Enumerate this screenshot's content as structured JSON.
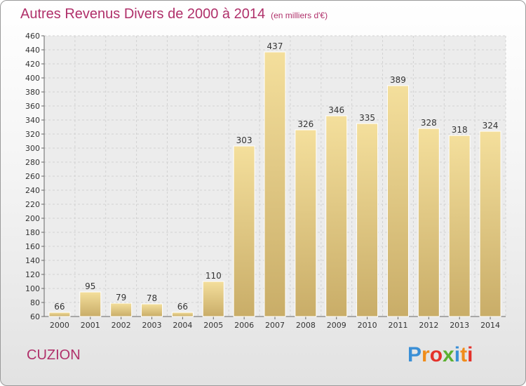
{
  "chart_data": {
    "type": "bar",
    "title": "Autres Revenus Divers de 2000 à 2014",
    "subtitle": "(en milliers d'€)",
    "categories": [
      "2000",
      "2001",
      "2002",
      "2003",
      "2004",
      "2005",
      "2006",
      "2007",
      "2008",
      "2009",
      "2010",
      "2011",
      "2012",
      "2013",
      "2014"
    ],
    "values": [
      66,
      95,
      79,
      78,
      66,
      110,
      303,
      437,
      326,
      346,
      335,
      389,
      328,
      318,
      324
    ],
    "ylim": [
      60,
      460
    ],
    "yticks": [
      60,
      80,
      100,
      120,
      140,
      160,
      180,
      200,
      220,
      240,
      260,
      280,
      300,
      320,
      340,
      360,
      380,
      400,
      420,
      440,
      460
    ],
    "grid": true,
    "bar_color": "#e6cd86"
  },
  "place_name": "CUZION",
  "logo": {
    "letters": [
      "P",
      "r",
      "o",
      "x",
      "i",
      "t",
      "i"
    ],
    "colors": [
      "#3a8fd6",
      "#f08c1a",
      "#e4322b",
      "#5bb030",
      "#3a8fd6",
      "#f08c1a",
      "#e4322b"
    ]
  }
}
